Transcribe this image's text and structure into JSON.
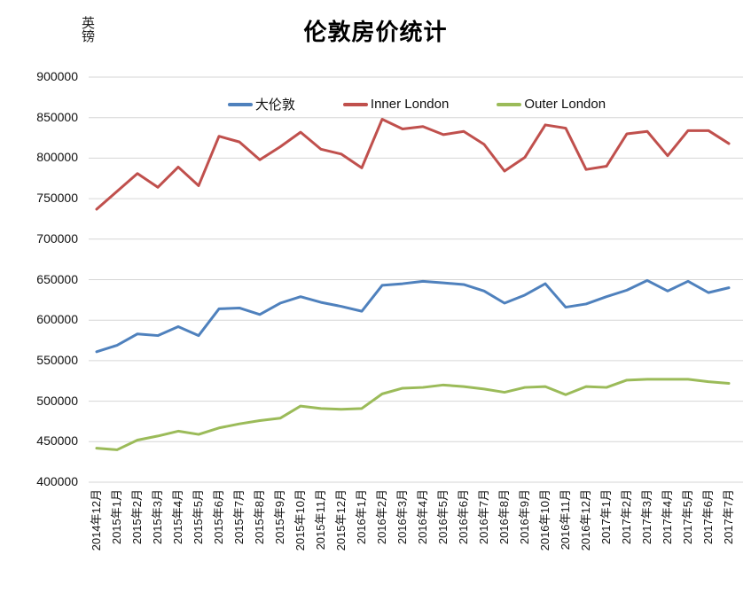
{
  "title": "伦敦房价统计",
  "y_axis_unit": "英镑",
  "chart_data": {
    "type": "line",
    "title": "伦敦房价统计",
    "ylabel": "英镑",
    "ylim": [
      400000,
      900000
    ],
    "ytick_step": 50000,
    "grid": true,
    "legend_position": "top",
    "gridline_color": "#d6d6d6",
    "categories": [
      "2014年12月",
      "2015年1月",
      "2015年2月",
      "2015年3月",
      "2015年4月",
      "2015年5月",
      "2015年6月",
      "2015年7月",
      "2015年8月",
      "2015年9月",
      "2015年10月",
      "2015年11月",
      "2015年12月",
      "2016年1月",
      "2016年2月",
      "2016年3月",
      "2016年4月",
      "2016年5月",
      "2016年6月",
      "2016年7月",
      "2016年8月",
      "2016年9月",
      "2016年10月",
      "2016年11月",
      "2016年12月",
      "2017年1月",
      "2017年2月",
      "2017年3月",
      "2017年4月",
      "2017年5月",
      "2017年6月",
      "2017年7月"
    ],
    "series": [
      {
        "name": "大伦敦",
        "color": "#4F81BD",
        "values": [
          561000,
          569000,
          583000,
          581000,
          592000,
          581000,
          614000,
          615000,
          607000,
          621000,
          629000,
          622000,
          617000,
          611000,
          643000,
          645000,
          648000,
          646000,
          644000,
          636000,
          621000,
          631000,
          645000,
          616000,
          620000,
          629000,
          637000,
          649000,
          636000,
          648000,
          634000,
          640000
        ]
      },
      {
        "name": "Inner London",
        "color": "#C0504D",
        "values": [
          737000,
          759000,
          781000,
          764000,
          789000,
          766000,
          827000,
          820000,
          798000,
          814000,
          832000,
          811000,
          805000,
          788000,
          848000,
          836000,
          839000,
          829000,
          833000,
          817000,
          784000,
          801000,
          841000,
          837000,
          786000,
          790000,
          830000,
          833000,
          803000,
          834000,
          834000,
          818000
        ]
      },
      {
        "name": "Outer London",
        "color": "#9BBB59",
        "values": [
          442000,
          440000,
          452000,
          457000,
          463000,
          459000,
          467000,
          472000,
          476000,
          479000,
          494000,
          491000,
          490000,
          491000,
          509000,
          516000,
          517000,
          520000,
          518000,
          515000,
          511000,
          517000,
          518000,
          508000,
          518000,
          517000,
          526000,
          527000,
          527000,
          527000,
          524000,
          522000
        ]
      }
    ]
  }
}
